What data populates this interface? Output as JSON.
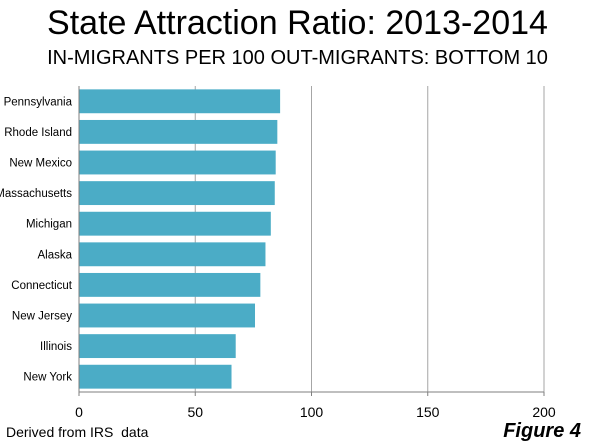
{
  "title": "State Attraction Ratio: 2013-2014",
  "subtitle": "IN-MIGRANTS PER 100 OUT-MIGRANTS: BOTTOM 10",
  "source": "Derived from IRS  data",
  "figure_label": "Figure 4",
  "colors": {
    "bar": "#4bacc6",
    "grid": "#a6a6a6",
    "axis": "#7f7f7f"
  },
  "chart_data": {
    "type": "bar",
    "orientation": "horizontal",
    "categories": [
      "Pennsylvania",
      "Rhode Island",
      "New Mexico",
      "Massachusetts",
      "Michigan",
      "Alaska",
      "Connecticut",
      "New Jersey",
      "Illinois",
      "New York"
    ],
    "values": [
      86.5,
      85.3,
      84.6,
      84.2,
      82.5,
      80.2,
      78.0,
      75.7,
      67.4,
      65.6
    ],
    "xlim": [
      0,
      200
    ],
    "xticks": [
      0,
      50,
      100,
      150,
      200
    ],
    "xlabel": "",
    "ylabel": "",
    "grid": true,
    "legend": "none"
  }
}
